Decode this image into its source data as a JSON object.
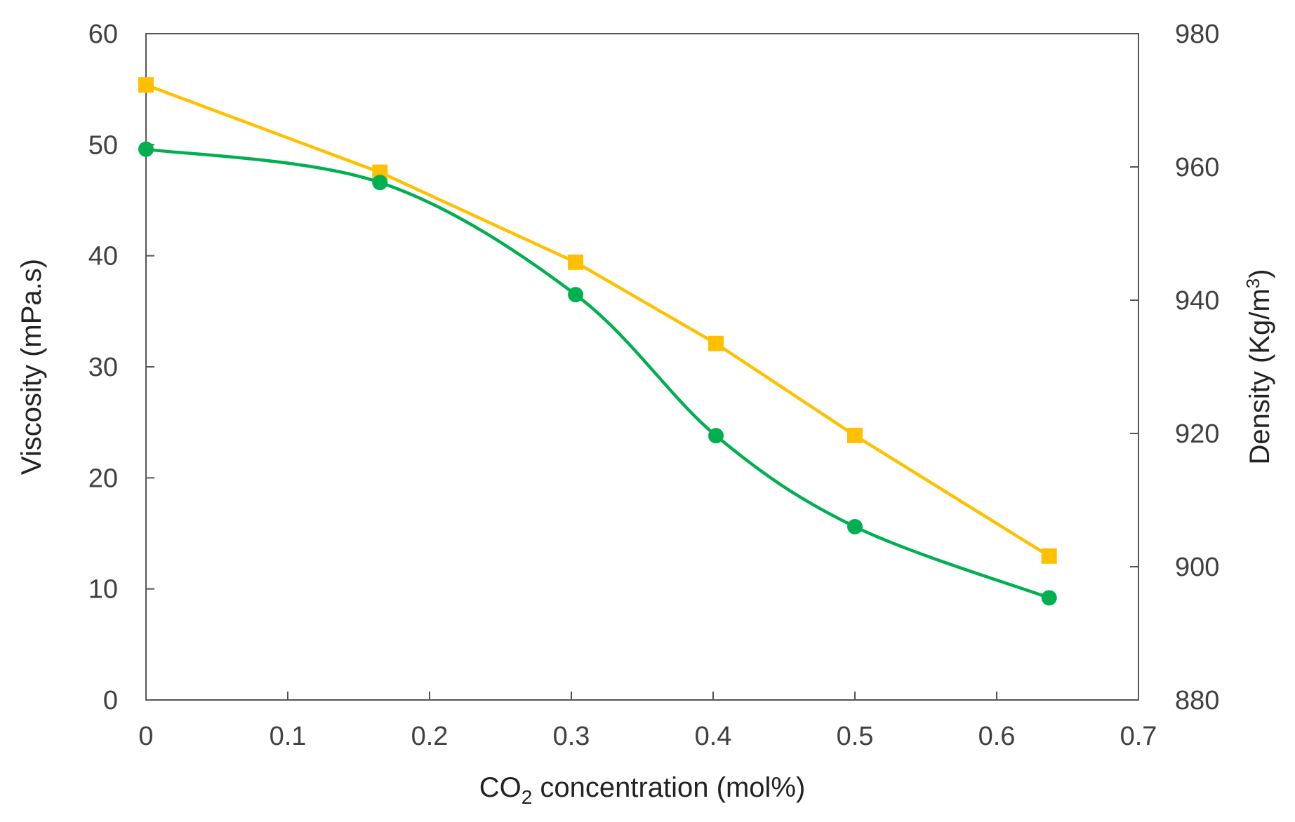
{
  "chart_data": {
    "type": "line",
    "title": "",
    "xlabel_prefix": "CO",
    "xlabel_sub": "2",
    "xlabel_suffix": " concentration (mol%)",
    "ylabel": "Viscosity (mPa.s)",
    "y2label_prefix": "Density (Kg/m",
    "y2label_sup": "3",
    "y2label_suffix": ")",
    "xlim": [
      0,
      0.7
    ],
    "ylim": [
      0,
      60
    ],
    "y2lim": [
      880,
      980
    ],
    "x_ticks": [
      {
        "value": 0,
        "label": "0"
      },
      {
        "value": 0.1,
        "label": "0.1"
      },
      {
        "value": 0.2,
        "label": "0.2"
      },
      {
        "value": 0.3,
        "label": "0.3"
      },
      {
        "value": 0.4,
        "label": "0.4"
      },
      {
        "value": 0.5,
        "label": "0.5"
      },
      {
        "value": 0.6,
        "label": "0.6"
      },
      {
        "value": 0.7,
        "label": "0.7"
      }
    ],
    "y_ticks": [
      {
        "value": 0,
        "label": "0"
      },
      {
        "value": 10,
        "label": "10"
      },
      {
        "value": 20,
        "label": "20"
      },
      {
        "value": 30,
        "label": "30"
      },
      {
        "value": 40,
        "label": "40"
      },
      {
        "value": 50,
        "label": "50"
      },
      {
        "value": 60,
        "label": "60"
      }
    ],
    "y2_ticks": [
      {
        "value": 880,
        "label": "880"
      },
      {
        "value": 900,
        "label": "900"
      },
      {
        "value": 920,
        "label": "920"
      },
      {
        "value": 940,
        "label": "940"
      },
      {
        "value": 960,
        "label": "960"
      },
      {
        "value": 980,
        "label": "980"
      }
    ],
    "series": [
      {
        "name": "Viscosity",
        "axis": "left",
        "marker": "circle",
        "smooth": true,
        "color": "#00B050",
        "x": [
          0,
          0.165,
          0.303,
          0.402,
          0.5,
          0.637
        ],
        "values": [
          49.6,
          46.6,
          36.5,
          23.8,
          15.6,
          9.2
        ]
      },
      {
        "name": "Density",
        "axis": "right",
        "marker": "square",
        "smooth": false,
        "color": "#FFC000",
        "x": [
          0,
          0.165,
          0.303,
          0.402,
          0.5,
          0.637
        ],
        "values": [
          972.3,
          959.2,
          945.7,
          933.5,
          919.7,
          901.6
        ]
      }
    ]
  }
}
